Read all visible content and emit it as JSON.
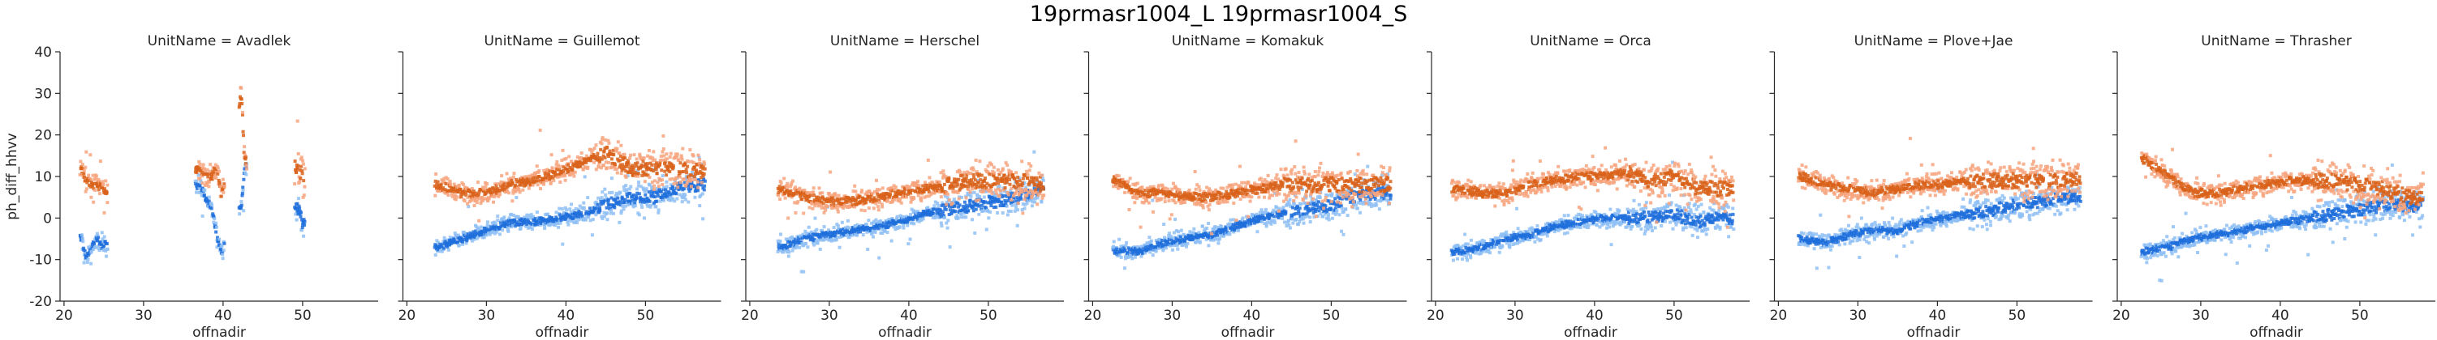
{
  "suptitle": "19prmasr1004_L 19prmasr1004_S",
  "chart_data": {
    "type": "scatter",
    "layout": "facet-row",
    "facet_variable": "UnitName",
    "xlabel": "offnadir",
    "ylabel": "ph_diff_hhvv",
    "xlim": [
      19.5,
      59.5
    ],
    "ylim": [
      -20,
      40
    ],
    "xticks": [
      20,
      30,
      40,
      50
    ],
    "yticks": [
      -20,
      -10,
      0,
      10,
      20,
      30,
      40
    ],
    "sharey": true,
    "legend": "none",
    "series_colors": {
      "L_density": "#1e6fdc",
      "L_sparse": "#8fbff5",
      "S_density": "#d9621a",
      "S_sparse": "#f7a57e"
    },
    "panels": [
      {
        "title": "UnitName = Avadlek",
        "segments": [
          [
            22.0,
            25.5
          ],
          [
            36.5,
            40.2
          ],
          [
            42.0,
            43.0
          ],
          [
            49.0,
            50.3
          ]
        ],
        "series": [
          {
            "name": "L",
            "points": [
              [
                22.2,
                -5
              ],
              [
                22.8,
                -10
              ],
              [
                23.5,
                -7
              ],
              [
                24.2,
                -5
              ],
              [
                24.8,
                -7
              ],
              [
                25.3,
                -6
              ],
              [
                37.0,
                8
              ],
              [
                37.8,
                5
              ],
              [
                38.6,
                2
              ],
              [
                39.2,
                -4
              ],
              [
                39.8,
                -8
              ],
              [
                42.3,
                3
              ],
              [
                42.7,
                12
              ],
              [
                49.5,
                2
              ],
              [
                50.0,
                -1
              ]
            ]
          },
          {
            "name": "S",
            "points": [
              [
                22.2,
                12
              ],
              [
                22.8,
                9
              ],
              [
                23.5,
                8
              ],
              [
                24.2,
                8
              ],
              [
                24.8,
                7
              ],
              [
                25.3,
                6
              ],
              [
                37.0,
                12
              ],
              [
                37.8,
                10
              ],
              [
                38.6,
                10
              ],
              [
                39.2,
                12
              ],
              [
                39.8,
                5
              ],
              [
                42.3,
                30
              ],
              [
                42.7,
                14
              ],
              [
                49.5,
                12
              ],
              [
                50.0,
                10
              ]
            ]
          }
        ]
      },
      {
        "title": "UnitName = Guillemot",
        "segments": [
          [
            23.5,
            57.5
          ]
        ],
        "series": [
          {
            "name": "L",
            "points": [
              [
                24,
                -7
              ],
              [
                27,
                -5
              ],
              [
                30,
                -3
              ],
              [
                33,
                -1
              ],
              [
                36,
                -1
              ],
              [
                39,
                0
              ],
              [
                42,
                1
              ],
              [
                45,
                3
              ],
              [
                48,
                5
              ],
              [
                51,
                5
              ],
              [
                54,
                7
              ],
              [
                57,
                8
              ]
            ]
          },
          {
            "name": "S",
            "points": [
              [
                24,
                8
              ],
              [
                27,
                6
              ],
              [
                30,
                6
              ],
              [
                33,
                8
              ],
              [
                36,
                9
              ],
              [
                39,
                11
              ],
              [
                42,
                13
              ],
              [
                45,
                16
              ],
              [
                48,
                12
              ],
              [
                51,
                12
              ],
              [
                54,
                12
              ],
              [
                57,
                11
              ]
            ]
          }
        ]
      },
      {
        "title": "UnitName = Herschel",
        "segments": [
          [
            23.5,
            57.0
          ]
        ],
        "series": [
          {
            "name": "L",
            "points": [
              [
                24,
                -7
              ],
              [
                27,
                -5
              ],
              [
                30,
                -4
              ],
              [
                33,
                -3
              ],
              [
                36,
                -2
              ],
              [
                39,
                -1
              ],
              [
                42,
                1
              ],
              [
                45,
                2
              ],
              [
                48,
                3
              ],
              [
                51,
                4
              ],
              [
                54,
                5
              ],
              [
                57,
                7
              ]
            ]
          },
          {
            "name": "S",
            "points": [
              [
                24,
                7
              ],
              [
                27,
                5
              ],
              [
                30,
                4
              ],
              [
                33,
                4
              ],
              [
                36,
                5
              ],
              [
                39,
                6
              ],
              [
                42,
                7
              ],
              [
                45,
                8
              ],
              [
                48,
                9
              ],
              [
                51,
                9
              ],
              [
                54,
                9
              ],
              [
                57,
                8
              ]
            ]
          }
        ]
      },
      {
        "title": "UnitName = Komakuk",
        "segments": [
          [
            22.5,
            57.5
          ]
        ],
        "series": [
          {
            "name": "L",
            "points": [
              [
                23,
                -8
              ],
              [
                26,
                -8
              ],
              [
                29,
                -6
              ],
              [
                32,
                -5
              ],
              [
                35,
                -4
              ],
              [
                38,
                -2
              ],
              [
                41,
                0
              ],
              [
                44,
                1
              ],
              [
                47,
                2
              ],
              [
                50,
                3
              ],
              [
                53,
                5
              ],
              [
                56,
                6
              ]
            ]
          },
          {
            "name": "S",
            "points": [
              [
                23,
                9
              ],
              [
                26,
                6
              ],
              [
                29,
                6
              ],
              [
                32,
                5
              ],
              [
                35,
                5
              ],
              [
                38,
                6
              ],
              [
                41,
                7
              ],
              [
                44,
                8
              ],
              [
                47,
                8
              ],
              [
                50,
                8
              ],
              [
                53,
                8
              ],
              [
                56,
                8
              ]
            ]
          }
        ]
      },
      {
        "title": "UnitName = Orca",
        "segments": [
          [
            22.0,
            57.5
          ]
        ],
        "series": [
          {
            "name": "L",
            "points": [
              [
                23,
                -8
              ],
              [
                26,
                -7
              ],
              [
                29,
                -5
              ],
              [
                32,
                -4
              ],
              [
                35,
                -2
              ],
              [
                38,
                -1
              ],
              [
                41,
                0
              ],
              [
                44,
                0
              ],
              [
                47,
                0
              ],
              [
                50,
                1
              ],
              [
                53,
                -1
              ],
              [
                56,
                0
              ]
            ]
          },
          {
            "name": "S",
            "points": [
              [
                23,
                7
              ],
              [
                26,
                6
              ],
              [
                29,
                6
              ],
              [
                32,
                8
              ],
              [
                35,
                9
              ],
              [
                38,
                10
              ],
              [
                41,
                10
              ],
              [
                44,
                11
              ],
              [
                47,
                9
              ],
              [
                50,
                10
              ],
              [
                53,
                7
              ],
              [
                56,
                7
              ]
            ]
          }
        ]
      },
      {
        "title": "UnitName = Plove+Jae",
        "segments": [
          [
            22.5,
            58.0
          ]
        ],
        "series": [
          {
            "name": "L",
            "points": [
              [
                23,
                -5
              ],
              [
                26,
                -6
              ],
              [
                29,
                -4
              ],
              [
                32,
                -3
              ],
              [
                35,
                -3
              ],
              [
                38,
                -1
              ],
              [
                41,
                0
              ],
              [
                44,
                1
              ],
              [
                47,
                2
              ],
              [
                50,
                3
              ],
              [
                53,
                4
              ],
              [
                56,
                5
              ]
            ]
          },
          {
            "name": "S",
            "points": [
              [
                23,
                10
              ],
              [
                26,
                8
              ],
              [
                29,
                7
              ],
              [
                32,
                6
              ],
              [
                35,
                7
              ],
              [
                38,
                8
              ],
              [
                41,
                8
              ],
              [
                44,
                9
              ],
              [
                47,
                9
              ],
              [
                50,
                9
              ],
              [
                53,
                9
              ],
              [
                56,
                9
              ]
            ]
          }
        ]
      },
      {
        "title": "UnitName = Thrasher",
        "segments": [
          [
            22.5,
            58.0
          ]
        ],
        "series": [
          {
            "name": "L",
            "points": [
              [
                23,
                -8
              ],
              [
                26,
                -7
              ],
              [
                29,
                -5
              ],
              [
                32,
                -4
              ],
              [
                35,
                -3
              ],
              [
                38,
                -2
              ],
              [
                41,
                -1
              ],
              [
                44,
                0
              ],
              [
                47,
                1
              ],
              [
                50,
                2
              ],
              [
                53,
                3
              ],
              [
                56,
                3
              ]
            ]
          },
          {
            "name": "S",
            "points": [
              [
                23,
                14
              ],
              [
                26,
                10
              ],
              [
                29,
                6
              ],
              [
                32,
                6
              ],
              [
                35,
                7
              ],
              [
                38,
                8
              ],
              [
                41,
                9
              ],
              [
                44,
                9
              ],
              [
                47,
                9
              ],
              [
                50,
                8
              ],
              [
                53,
                7
              ],
              [
                56,
                5
              ]
            ]
          }
        ]
      }
    ]
  }
}
